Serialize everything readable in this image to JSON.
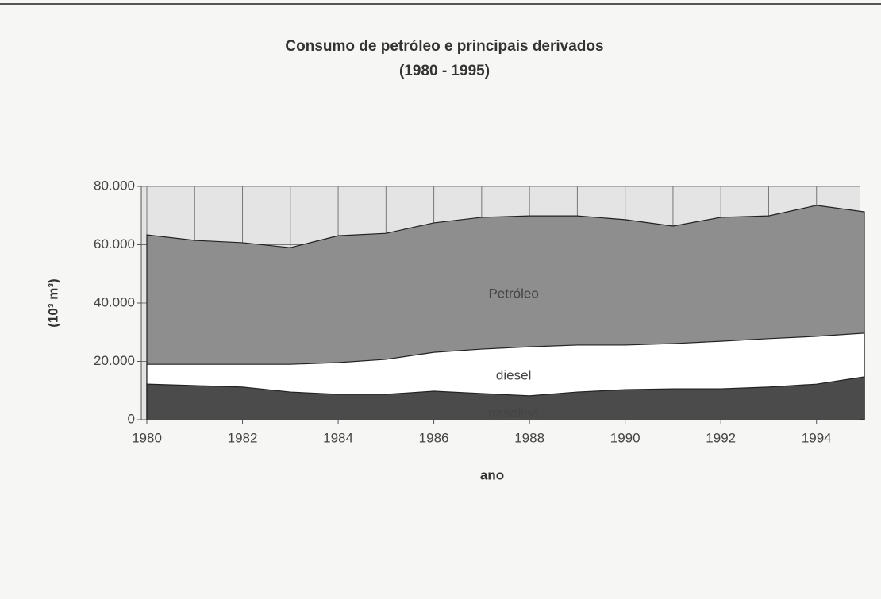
{
  "chart_data": {
    "type": "area",
    "title": "Consumo de petróleo e principais derivados",
    "subtitle": "(1980 - 1995)",
    "x_label": "ano",
    "y_label": "(10³ m³)",
    "x": [
      1980,
      1981,
      1982,
      1983,
      1984,
      1985,
      1986,
      1987,
      1988,
      1989,
      1990,
      1991,
      1992,
      1993,
      1994,
      1995
    ],
    "series": [
      {
        "name": "Petróleo",
        "color": "#8e8e8e",
        "values": [
          63400,
          61500,
          60700,
          59000,
          63100,
          63900,
          67500,
          69400,
          69900,
          69900,
          68600,
          66400,
          69400,
          69900,
          73500,
          71300
        ]
      },
      {
        "name": "diesel",
        "color": "#ffffff",
        "values": [
          19000,
          19000,
          19000,
          19000,
          19600,
          20700,
          23100,
          24200,
          25000,
          25600,
          25600,
          26100,
          26900,
          27800,
          28600,
          29700
        ]
      },
      {
        "name": "gasolina",
        "color": "#4b4b4b",
        "values": [
          12200,
          11700,
          11200,
          9500,
          8700,
          8700,
          9800,
          9000,
          8200,
          9500,
          10300,
          10600,
          10600,
          11200,
          12200,
          14700
        ]
      }
    ],
    "xlim": [
      1980,
      1995
    ],
    "xticks": [
      1980,
      1982,
      1984,
      1986,
      1988,
      1990,
      1992,
      1994
    ],
    "ylim": [
      0,
      80000
    ],
    "yticks": [
      0,
      {
        "value": 20000,
        "label": "20.000"
      },
      {
        "value": 40000,
        "label": "40.000"
      },
      {
        "value": 60000,
        "label": "60.000"
      },
      {
        "value": 80000,
        "label": "80.000"
      }
    ],
    "grid": true
  }
}
